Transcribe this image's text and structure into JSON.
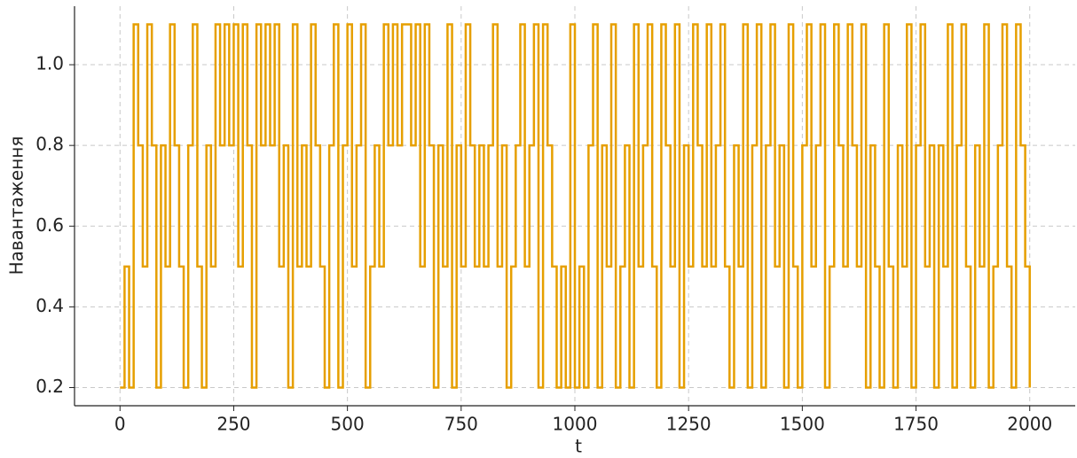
{
  "chart_data": {
    "type": "step",
    "x_label": "t",
    "y_label": "Навантаження",
    "x": [
      0,
      10,
      20,
      30,
      40,
      50,
      60,
      70,
      80,
      90,
      100,
      110,
      120,
      130,
      140,
      150,
      160,
      170,
      180,
      190,
      200,
      210,
      220,
      230,
      240,
      250,
      260,
      270,
      280,
      290,
      300,
      310,
      320,
      330,
      340,
      350,
      360,
      370,
      380,
      390,
      400,
      410,
      420,
      430,
      440,
      450,
      460,
      470,
      480,
      490,
      500,
      510,
      520,
      530,
      540,
      550,
      560,
      570,
      580,
      590,
      600,
      610,
      620,
      630,
      640,
      650,
      660,
      670,
      680,
      690,
      700,
      710,
      720,
      730,
      740,
      750,
      760,
      770,
      780,
      790,
      800,
      810,
      820,
      830,
      840,
      850,
      860,
      870,
      880,
      890,
      900,
      910,
      920,
      930,
      940,
      950,
      960,
      970,
      980,
      990,
      1000,
      1010,
      1020,
      1030,
      1040,
      1050,
      1060,
      1070,
      1080,
      1090,
      1100,
      1110,
      1120,
      1130,
      1140,
      1150,
      1160,
      1170,
      1180,
      1190,
      1200,
      1210,
      1220,
      1230,
      1240,
      1250,
      1260,
      1270,
      1280,
      1290,
      1300,
      1310,
      1320,
      1330,
      1340,
      1350,
      1360,
      1370,
      1380,
      1390,
      1400,
      1410,
      1420,
      1430,
      1440,
      1450,
      1460,
      1470,
      1480,
      1490,
      1500,
      1510,
      1520,
      1530,
      1540,
      1550,
      1560,
      1570,
      1580,
      1590,
      1600,
      1610,
      1620,
      1630,
      1640,
      1650,
      1660,
      1670,
      1680,
      1690,
      1700,
      1710,
      1720,
      1730,
      1740,
      1750,
      1760,
      1770,
      1780,
      1790,
      1800,
      1810,
      1820,
      1830,
      1840,
      1850,
      1860,
      1870,
      1880,
      1890,
      1900,
      1910,
      1920,
      1930,
      1940,
      1950,
      1960,
      1970,
      1980,
      1990,
      2000
    ],
    "values": [
      0.2,
      0.5,
      0.2,
      1.1,
      0.8,
      0.5,
      1.1,
      0.8,
      0.2,
      0.8,
      0.5,
      1.1,
      0.8,
      0.5,
      0.2,
      0.8,
      1.1,
      0.5,
      0.2,
      0.8,
      0.5,
      1.1,
      0.8,
      1.1,
      0.8,
      1.1,
      0.5,
      1.1,
      0.8,
      0.2,
      1.1,
      0.8,
      1.1,
      0.8,
      1.1,
      0.5,
      0.8,
      0.2,
      1.1,
      0.5,
      0.8,
      0.5,
      1.1,
      0.8,
      0.5,
      0.2,
      0.8,
      1.1,
      0.2,
      0.8,
      1.1,
      0.5,
      0.8,
      1.1,
      0.2,
      0.5,
      0.8,
      0.5,
      1.1,
      0.8,
      1.1,
      0.8,
      1.1,
      1.1,
      0.8,
      1.1,
      0.5,
      1.1,
      0.8,
      0.2,
      0.8,
      0.5,
      1.1,
      0.2,
      0.8,
      0.5,
      1.1,
      0.8,
      0.5,
      0.8,
      0.5,
      0.8,
      1.1,
      0.5,
      0.8,
      0.2,
      0.5,
      0.8,
      1.1,
      0.5,
      0.8,
      1.1,
      0.2,
      1.1,
      0.8,
      0.5,
      0.2,
      0.5,
      0.2,
      1.1,
      0.2,
      0.5,
      0.2,
      0.8,
      1.1,
      0.2,
      0.8,
      0.5,
      1.1,
      0.2,
      0.5,
      0.8,
      0.2,
      1.1,
      0.5,
      0.8,
      1.1,
      0.5,
      0.2,
      1.1,
      0.8,
      0.5,
      1.1,
      0.2,
      0.8,
      0.5,
      1.1,
      0.8,
      0.5,
      1.1,
      0.5,
      0.8,
      1.1,
      0.5,
      0.2,
      0.8,
      0.5,
      1.1,
      0.2,
      0.8,
      1.1,
      0.2,
      0.8,
      1.1,
      0.5,
      0.8,
      0.2,
      1.1,
      0.5,
      0.2,
      0.8,
      1.1,
      0.5,
      0.8,
      1.1,
      0.2,
      0.5,
      1.1,
      0.8,
      0.5,
      1.1,
      0.8,
      0.5,
      1.1,
      0.2,
      0.8,
      0.5,
      0.2,
      1.1,
      0.5,
      0.2,
      0.8,
      0.5,
      1.1,
      0.2,
      0.8,
      1.1,
      0.5,
      0.8,
      0.2,
      0.8,
      0.5,
      1.1,
      0.2,
      0.8,
      1.1,
      0.5,
      0.2,
      0.8,
      0.5,
      1.1,
      0.2,
      0.5,
      0.8,
      1.1,
      0.5,
      0.2,
      1.1,
      0.8,
      0.5,
      0.2
    ],
    "color": "#e69f00",
    "xlim": [
      -100,
      2100
    ],
    "ylim": [
      0.155,
      1.145
    ],
    "xticks": [
      0,
      250,
      500,
      750,
      1000,
      1250,
      1500,
      1750,
      2000
    ],
    "yticks": [
      0.2,
      0.4,
      0.6,
      0.8,
      {
        "value": 1,
        "label": "1.0"
      }
    ],
    "grid": true
  }
}
